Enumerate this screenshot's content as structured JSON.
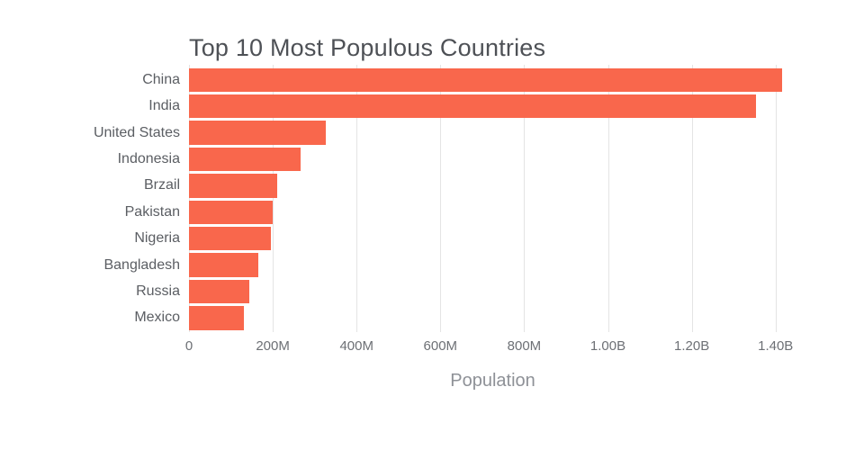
{
  "chart_data": {
    "type": "bar",
    "orientation": "horizontal",
    "title": "Top 10 Most Populous Countries",
    "xlabel": "Population",
    "ylabel": "",
    "categories": [
      "China",
      "India",
      "United States",
      "Indonesia",
      "Brzail",
      "Pakistan",
      "Nigeria",
      "Bangladesh",
      "Russia",
      "Mexico"
    ],
    "values": [
      1415045928,
      1354051854,
      326766748,
      266794980,
      210867954,
      200813818,
      195875237,
      166368149,
      143964709,
      130759074
    ],
    "x_ticks": [
      {
        "value": 0,
        "label": "0"
      },
      {
        "value": 200000000,
        "label": "200M"
      },
      {
        "value": 400000000,
        "label": "400M"
      },
      {
        "value": 600000000,
        "label": "600M"
      },
      {
        "value": 800000000,
        "label": "800M"
      },
      {
        "value": 1000000000,
        "label": "1.00B"
      },
      {
        "value": 1200000000,
        "label": "1.20B"
      },
      {
        "value": 1400000000,
        "label": "1.40B"
      }
    ],
    "xlim": [
      0,
      1450000000
    ],
    "grid": true,
    "legend": "none",
    "colors": {
      "bar": "#f9674c",
      "grid": "#e4e4e4",
      "title": "#4e5156",
      "tick_label": "#6d7075",
      "category_label": "#5b5e63",
      "axis_title": "#8e9197",
      "background": "#ffffff"
    }
  }
}
